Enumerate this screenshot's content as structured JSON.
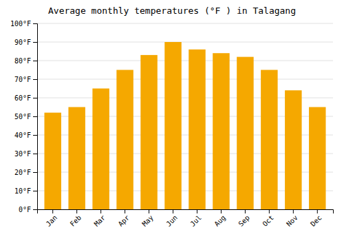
{
  "chart_data": {
    "type": "bar",
    "title": "Average monthly temperatures (°F ) in Talagang",
    "categories": [
      "Jan",
      "Feb",
      "Mar",
      "Apr",
      "May",
      "Jun",
      "Jul",
      "Aug",
      "Sep",
      "Oct",
      "Nov",
      "Dec"
    ],
    "values": [
      52,
      55,
      65,
      75,
      83,
      90,
      86,
      84,
      82,
      75,
      64,
      55
    ],
    "color": "#F5A800",
    "ylim": [
      0,
      100
    ],
    "yticks": [
      {
        "value": 0,
        "label": "0°F"
      },
      {
        "value": 10,
        "label": "10°F"
      },
      {
        "value": 20,
        "label": "20°F"
      },
      {
        "value": 30,
        "label": "30°F"
      },
      {
        "value": 40,
        "label": "40°F"
      },
      {
        "value": 50,
        "label": "50°F"
      },
      {
        "value": 60,
        "label": "60°F"
      },
      {
        "value": 70,
        "label": "70°F"
      },
      {
        "value": 80,
        "label": "80°F"
      },
      {
        "value": 90,
        "label": "90°F"
      },
      {
        "value": 100,
        "label": "100°F"
      }
    ],
    "grid": true
  }
}
